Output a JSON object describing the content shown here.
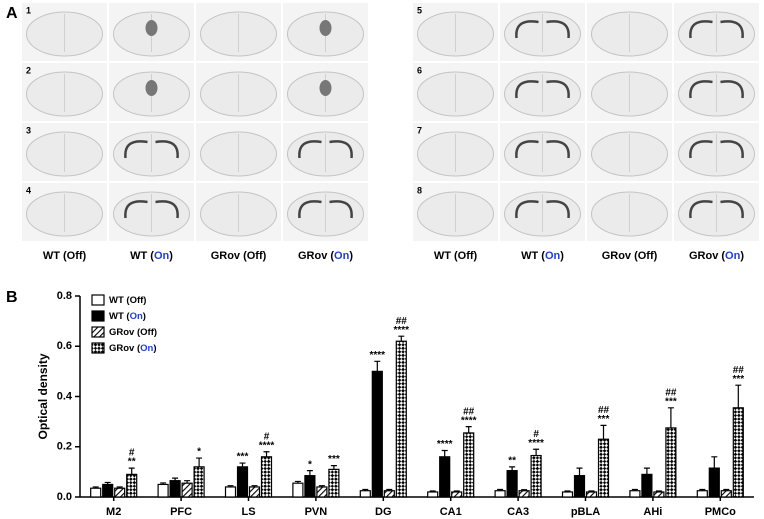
{
  "highlight": {
    "text": "On",
    "color": "#1f3fd0"
  },
  "panel_a": {
    "label": "A",
    "row_numbers": [
      "1",
      "2",
      "3",
      "4",
      "5",
      "6",
      "7",
      "8"
    ],
    "column_labels": [
      "WT (Off)",
      "WT (On)",
      "GRov (Off)",
      "GRov (On)",
      "WT (Off)",
      "WT (On)",
      "GRov (Off)",
      "GRov (On)"
    ]
  },
  "chart_data": {
    "type": "bar",
    "panel_label": "B",
    "y_label": "Optical density",
    "categories": [
      "M2",
      "PFC",
      "LS",
      "PVN",
      "DG",
      "CA1",
      "CA3",
      "pBLA",
      "AHi",
      "PMCo"
    ],
    "ylim": [
      0,
      0.8
    ],
    "yticks": [
      {
        "value": 0,
        "label": "0.0"
      },
      0.2,
      0.4,
      0.6,
      0.8
    ],
    "grid": false,
    "legend": "top-left",
    "series": [
      {
        "name": "WT (Off)",
        "color": "#ffffff",
        "pattern": "solid",
        "values": [
          0.035,
          0.05,
          0.04,
          0.055,
          0.025,
          0.02,
          0.025,
          0.02,
          0.025,
          0.025
        ],
        "errors": [
          0.005,
          0.006,
          0.005,
          0.007,
          0.005,
          0.004,
          0.005,
          0.004,
          0.005,
          0.005
        ]
      },
      {
        "name": "WT (On)",
        "color": "#000000",
        "pattern": "solid",
        "values": [
          0.05,
          0.065,
          0.12,
          0.085,
          0.5,
          0.16,
          0.105,
          0.085,
          0.09,
          0.115
        ],
        "errors": [
          0.008,
          0.01,
          0.015,
          0.02,
          0.04,
          0.025,
          0.015,
          0.03,
          0.025,
          0.045
        ],
        "annotations": [
          null,
          null,
          [
            "***"
          ],
          [
            "*"
          ],
          [
            "****"
          ],
          [
            "****"
          ],
          [
            "**"
          ],
          null,
          null,
          null
        ]
      },
      {
        "name": "GRov (Off)",
        "color": "#000000",
        "pattern": "diagonal",
        "values": [
          0.035,
          0.055,
          0.04,
          0.04,
          0.025,
          0.02,
          0.025,
          0.02,
          0.02,
          0.025
        ],
        "errors": [
          0.005,
          0.01,
          0.005,
          0.005,
          0.005,
          0.004,
          0.004,
          0.004,
          0.004,
          0.005
        ]
      },
      {
        "name": "GRov (On)",
        "color": "#000000",
        "pattern": "crosshatch",
        "values": [
          0.09,
          0.12,
          0.16,
          0.11,
          0.62,
          0.255,
          0.165,
          0.23,
          0.275,
          0.355
        ],
        "errors": [
          0.025,
          0.035,
          0.02,
          0.015,
          0.02,
          0.025,
          0.025,
          0.055,
          0.08,
          0.09
        ],
        "annotations": [
          [
            "#",
            "**"
          ],
          [
            "*"
          ],
          [
            "#",
            "****"
          ],
          [
            "***"
          ],
          [
            "##",
            "****"
          ],
          [
            "##",
            "****"
          ],
          [
            "#",
            "****"
          ],
          [
            "##",
            "***"
          ],
          [
            "##",
            "***"
          ],
          [
            "##",
            "***"
          ]
        ]
      }
    ]
  }
}
